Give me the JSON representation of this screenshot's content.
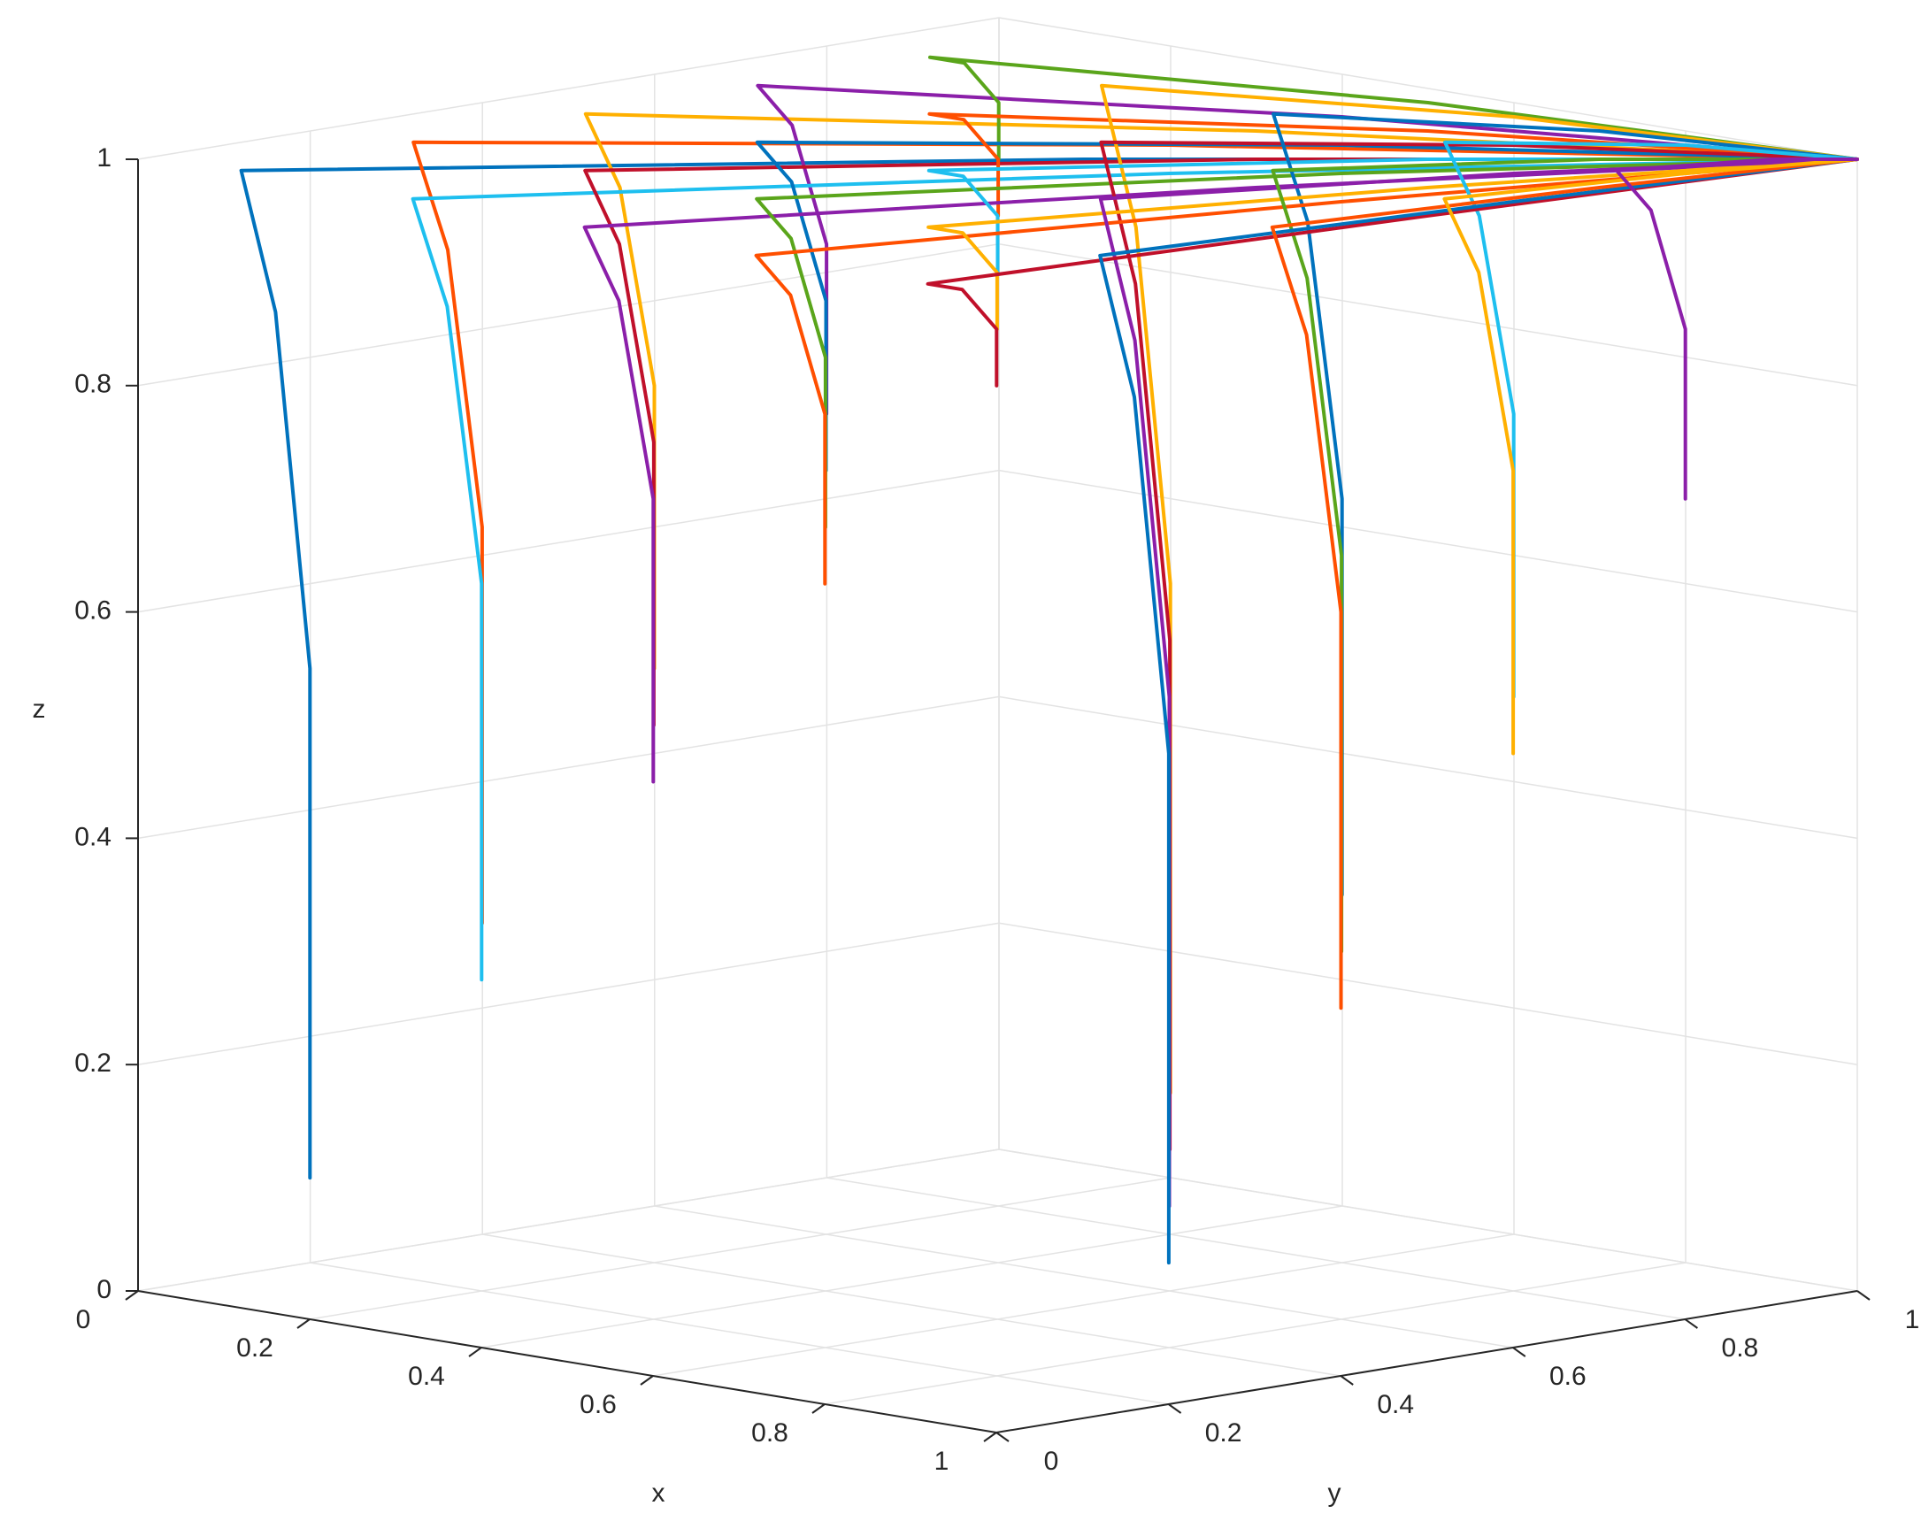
{
  "chart_data": {
    "type": "line3d",
    "xlabel": "x",
    "ylabel": "y",
    "zlabel": "z",
    "xlim": [
      0,
      1
    ],
    "ylim": [
      0,
      1
    ],
    "zlim": [
      0,
      1
    ],
    "xticks": [
      0,
      0.2,
      0.4,
      0.6,
      0.8,
      1
    ],
    "yticks": [
      0,
      0.2,
      0.4,
      0.6,
      0.8,
      1
    ],
    "zticks": [
      0,
      0.2,
      0.4,
      0.6,
      0.8,
      1
    ],
    "grid": true,
    "series": [
      {
        "color": "#0072BD",
        "x": [
          0.1,
          0.1,
          0.08,
          0.06,
          0.55,
          0.91,
          1
        ],
        "y": [
          0.1,
          0.1,
          0.08,
          0.06,
          0.55,
          0.91,
          1
        ],
        "z": [
          0.1,
          0.55,
          0.865,
          0.99,
          1,
          1,
          1
        ]
      },
      {
        "color": "#FF4F00",
        "x": [
          0.1,
          0.1,
          0.08,
          0.06,
          0.55,
          0.91,
          1
        ],
        "y": [
          0.3,
          0.3,
          0.28,
          0.26,
          0.65,
          0.93,
          1
        ],
        "z": [
          0.3,
          0.65,
          0.895,
          0.99,
          1,
          1,
          1
        ]
      },
      {
        "color": "#FFB000",
        "x": [
          0.1,
          0.1,
          0.08,
          0.06,
          0.55,
          0.91,
          1
        ],
        "y": [
          0.5,
          0.5,
          0.48,
          0.46,
          0.75,
          0.95,
          1
        ],
        "z": [
          0.5,
          0.75,
          0.925,
          0.99,
          1,
          1,
          1
        ]
      },
      {
        "color": "#8B1FA9",
        "x": [
          0.1,
          0.1,
          0.08,
          0.06,
          0.55,
          0.91,
          1
        ],
        "y": [
          0.7,
          0.7,
          0.68,
          0.66,
          0.85,
          0.97,
          1
        ],
        "z": [
          0.7,
          0.85,
          0.955,
          0.99,
          1,
          1,
          1
        ]
      },
      {
        "color": "#5AA51B",
        "x": [
          0.1,
          0.1,
          0.08,
          0.06,
          0.55,
          0.91,
          1
        ],
        "y": [
          0.9,
          0.9,
          0.88,
          0.86,
          0.95,
          0.99,
          1
        ],
        "z": [
          0.9,
          0.95,
          0.985,
          0.99,
          1,
          1,
          1
        ]
      },
      {
        "color": "#1EBFEF",
        "x": [
          0.3,
          0.3,
          0.28,
          0.26,
          0.65,
          0.93,
          1
        ],
        "y": [
          0.1,
          0.1,
          0.08,
          0.06,
          0.55,
          0.91,
          1
        ],
        "z": [
          0.3,
          0.65,
          0.895,
          0.99,
          1,
          1,
          1
        ]
      },
      {
        "color": "#C0102A",
        "x": [
          0.3,
          0.3,
          0.28,
          0.26,
          0.65,
          0.93,
          1
        ],
        "y": [
          0.3,
          0.3,
          0.28,
          0.26,
          0.65,
          0.93,
          1
        ],
        "z": [
          0.5,
          0.75,
          0.925,
          0.99,
          1,
          1,
          1
        ]
      },
      {
        "color": "#0072BD",
        "x": [
          0.3,
          0.3,
          0.28,
          0.26,
          0.65,
          0.93,
          1
        ],
        "y": [
          0.5,
          0.5,
          0.48,
          0.46,
          0.75,
          0.95,
          1
        ],
        "z": [
          0.7,
          0.85,
          0.955,
          0.99,
          1,
          1,
          1
        ]
      },
      {
        "color": "#FF4F00",
        "x": [
          0.3,
          0.3,
          0.28,
          0.26,
          0.65,
          0.93,
          1
        ],
        "y": [
          0.7,
          0.7,
          0.68,
          0.66,
          0.85,
          0.97,
          1
        ],
        "z": [
          0.9,
          0.95,
          0.985,
          0.99,
          1,
          1,
          1
        ]
      },
      {
        "color": "#FFB000",
        "x": [
          0.3,
          0.3,
          0.28,
          0.26,
          0.65,
          0.93,
          1
        ],
        "y": [
          0.9,
          0.9,
          0.88,
          0.86,
          0.95,
          0.99,
          1
        ],
        "z": [
          0.1,
          0.55,
          0.865,
          0.99,
          1,
          1,
          1
        ]
      },
      {
        "color": "#8B1FA9",
        "x": [
          0.5,
          0.5,
          0.48,
          0.46,
          0.75,
          0.95,
          1
        ],
        "y": [
          0.1,
          0.1,
          0.08,
          0.06,
          0.55,
          0.91,
          1
        ],
        "z": [
          0.5,
          0.75,
          0.925,
          0.99,
          1,
          1,
          1
        ]
      },
      {
        "color": "#5AA51B",
        "x": [
          0.5,
          0.5,
          0.48,
          0.46,
          0.75,
          0.95,
          1
        ],
        "y": [
          0.3,
          0.3,
          0.28,
          0.26,
          0.65,
          0.93,
          1
        ],
        "z": [
          0.7,
          0.85,
          0.955,
          0.99,
          1,
          1,
          1
        ]
      },
      {
        "color": "#1EBFEF",
        "x": [
          0.5,
          0.5,
          0.48,
          0.46,
          0.75,
          0.95,
          1
        ],
        "y": [
          0.5,
          0.5,
          0.48,
          0.46,
          0.75,
          0.95,
          1
        ],
        "z": [
          0.9,
          0.95,
          0.985,
          0.99,
          1,
          1,
          1
        ]
      },
      {
        "color": "#C0102A",
        "x": [
          0.5,
          0.5,
          0.48,
          0.46,
          0.75,
          0.95,
          1
        ],
        "y": [
          0.7,
          0.7,
          0.68,
          0.66,
          0.85,
          0.97,
          1
        ],
        "z": [
          0.1,
          0.55,
          0.865,
          0.99,
          1,
          1,
          1
        ]
      },
      {
        "color": "#0072BD",
        "x": [
          0.5,
          0.5,
          0.48,
          0.46,
          0.75,
          0.95,
          1
        ],
        "y": [
          0.9,
          0.9,
          0.88,
          0.86,
          0.95,
          0.99,
          1
        ],
        "z": [
          0.3,
          0.65,
          0.895,
          0.99,
          1,
          1,
          1
        ]
      },
      {
        "color": "#FF4F00",
        "x": [
          0.7,
          0.7,
          0.68,
          0.66,
          0.85,
          0.97,
          1
        ],
        "y": [
          0.1,
          0.1,
          0.08,
          0.06,
          0.55,
          0.91,
          1
        ],
        "z": [
          0.7,
          0.85,
          0.955,
          0.99,
          1,
          1,
          1
        ]
      },
      {
        "color": "#FFB000",
        "x": [
          0.7,
          0.7,
          0.68,
          0.66,
          0.85,
          0.97,
          1
        ],
        "y": [
          0.3,
          0.3,
          0.28,
          0.26,
          0.65,
          0.93,
          1
        ],
        "z": [
          0.9,
          0.95,
          0.985,
          0.99,
          1,
          1,
          1
        ]
      },
      {
        "color": "#8B1FA9",
        "x": [
          0.7,
          0.7,
          0.68,
          0.66,
          0.85,
          0.97,
          1
        ],
        "y": [
          0.5,
          0.5,
          0.48,
          0.46,
          0.75,
          0.95,
          1
        ],
        "z": [
          0.1,
          0.55,
          0.865,
          0.99,
          1,
          1,
          1
        ]
      },
      {
        "color": "#5AA51B",
        "x": [
          0.7,
          0.7,
          0.68,
          0.66,
          0.85,
          0.97,
          1
        ],
        "y": [
          0.7,
          0.7,
          0.68,
          0.66,
          0.85,
          0.97,
          1
        ],
        "z": [
          0.3,
          0.65,
          0.895,
          0.99,
          1,
          1,
          1
        ]
      },
      {
        "color": "#1EBFEF",
        "x": [
          0.7,
          0.7,
          0.68,
          0.66,
          0.85,
          0.97,
          1
        ],
        "y": [
          0.9,
          0.9,
          0.88,
          0.86,
          0.95,
          0.99,
          1
        ],
        "z": [
          0.5,
          0.75,
          0.925,
          0.99,
          1,
          1,
          1
        ]
      },
      {
        "color": "#C0102A",
        "x": [
          0.9,
          0.9,
          0.88,
          0.86,
          0.95,
          0.99,
          1
        ],
        "y": [
          0.1,
          0.1,
          0.08,
          0.06,
          0.55,
          0.91,
          1
        ],
        "z": [
          0.9,
          0.95,
          0.985,
          0.99,
          1,
          1,
          1
        ]
      },
      {
        "color": "#0072BD",
        "x": [
          0.9,
          0.9,
          0.88,
          0.86,
          0.95,
          0.99,
          1
        ],
        "y": [
          0.3,
          0.3,
          0.28,
          0.26,
          0.65,
          0.93,
          1
        ],
        "z": [
          0.1,
          0.55,
          0.865,
          0.99,
          1,
          1,
          1
        ]
      },
      {
        "color": "#FF4F00",
        "x": [
          0.9,
          0.9,
          0.88,
          0.86,
          0.95,
          0.99,
          1
        ],
        "y": [
          0.5,
          0.5,
          0.48,
          0.46,
          0.75,
          0.95,
          1
        ],
        "z": [
          0.3,
          0.65,
          0.895,
          0.99,
          1,
          1,
          1
        ]
      },
      {
        "color": "#FFB000",
        "x": [
          0.9,
          0.9,
          0.88,
          0.86,
          0.95,
          0.99,
          1
        ],
        "y": [
          0.7,
          0.7,
          0.68,
          0.66,
          0.85,
          0.97,
          1
        ],
        "z": [
          0.5,
          0.75,
          0.925,
          0.99,
          1,
          1,
          1
        ]
      },
      {
        "color": "#8B1FA9",
        "x": [
          0.9,
          0.9,
          0.88,
          0.86,
          0.95,
          0.99,
          1
        ],
        "y": [
          0.9,
          0.9,
          0.88,
          0.86,
          0.95,
          0.99,
          1
        ],
        "z": [
          0.7,
          0.85,
          0.955,
          0.99,
          1,
          1,
          1
        ]
      }
    ]
  }
}
